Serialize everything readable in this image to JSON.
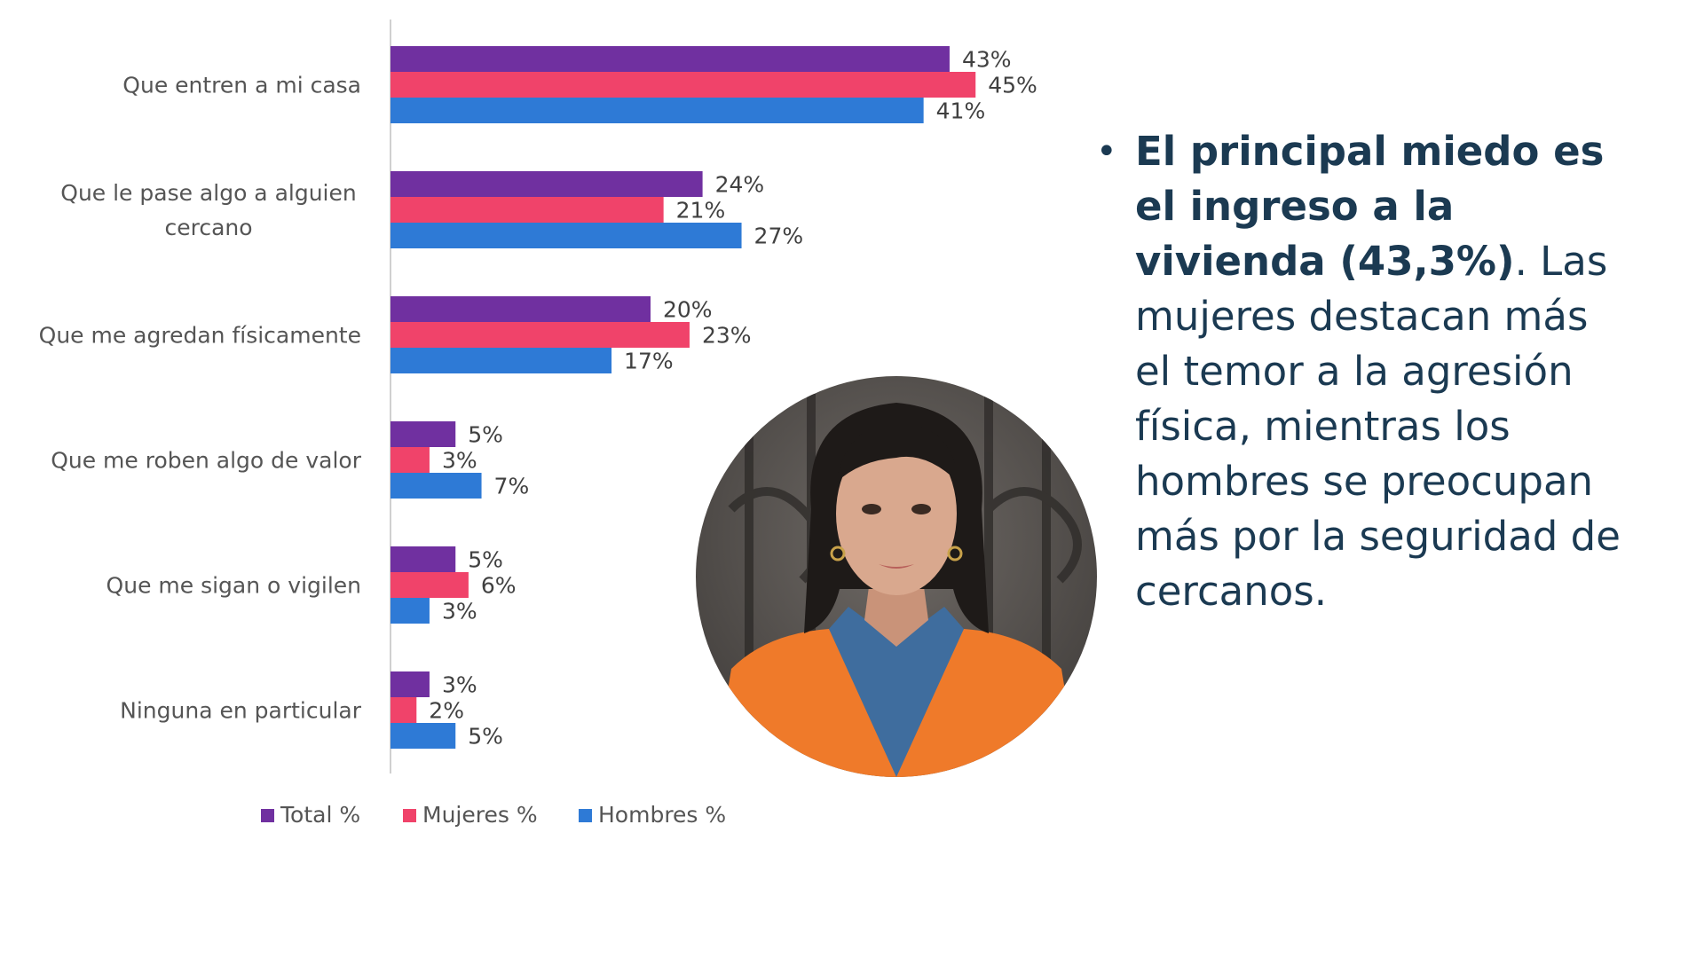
{
  "chart_data": {
    "type": "bar",
    "orientation": "horizontal",
    "categories": [
      "Que entren a mi casa",
      "Que le pase algo a alguien cercano",
      "Que me agredan físicamente",
      "Que me roben algo de valor",
      "Que me sigan o vigilen",
      "Ninguna en particular"
    ],
    "category_lines": [
      [
        "Que entren a mi casa"
      ],
      [
        "Que le pase algo a alguien",
        "cercano"
      ],
      [
        "Que me agredan físicamente"
      ],
      [
        "Que me roben algo de valor"
      ],
      [
        "Que me sigan o vigilen"
      ],
      [
        "Ninguna en particular"
      ]
    ],
    "series": [
      {
        "name": "Total %",
        "color": "#7030a0",
        "values": [
          43,
          24,
          20,
          5,
          5,
          3
        ],
        "labels": [
          "43%",
          "24%",
          "20%",
          "5%",
          "5%",
          "3%"
        ]
      },
      {
        "name": "Mujeres %",
        "color": "#f0436a",
        "values": [
          45,
          21,
          23,
          3,
          6,
          2
        ],
        "labels": [
          "45%",
          "21%",
          "23%",
          "3%",
          "6%",
          "2%"
        ]
      },
      {
        "name": "Hombres %",
        "color": "#2e7ad6",
        "values": [
          41,
          27,
          17,
          7,
          3,
          5
        ],
        "labels": [
          "41%",
          "27%",
          "17%",
          "7%",
          "3%",
          "5%"
        ]
      }
    ],
    "title": "",
    "xlabel": "",
    "ylabel": "",
    "xlim": [
      0,
      50
    ],
    "grid": false,
    "legend": "bottom"
  },
  "caption": {
    "bold": "El principal miedo es el ingreso a la vivienda (43,3%)",
    "rest": ". Las mujeres destacan más el temor a la agresión física, mientras los hombres se preocupan más por la seguridad de cercanos."
  },
  "photo": {
    "icon": "portrait-photo",
    "colors": {
      "jacket": "#ef7a2a",
      "shirt": "#3f6d9e",
      "hair": "#1e1a18",
      "skin": "#d9a88e"
    }
  }
}
